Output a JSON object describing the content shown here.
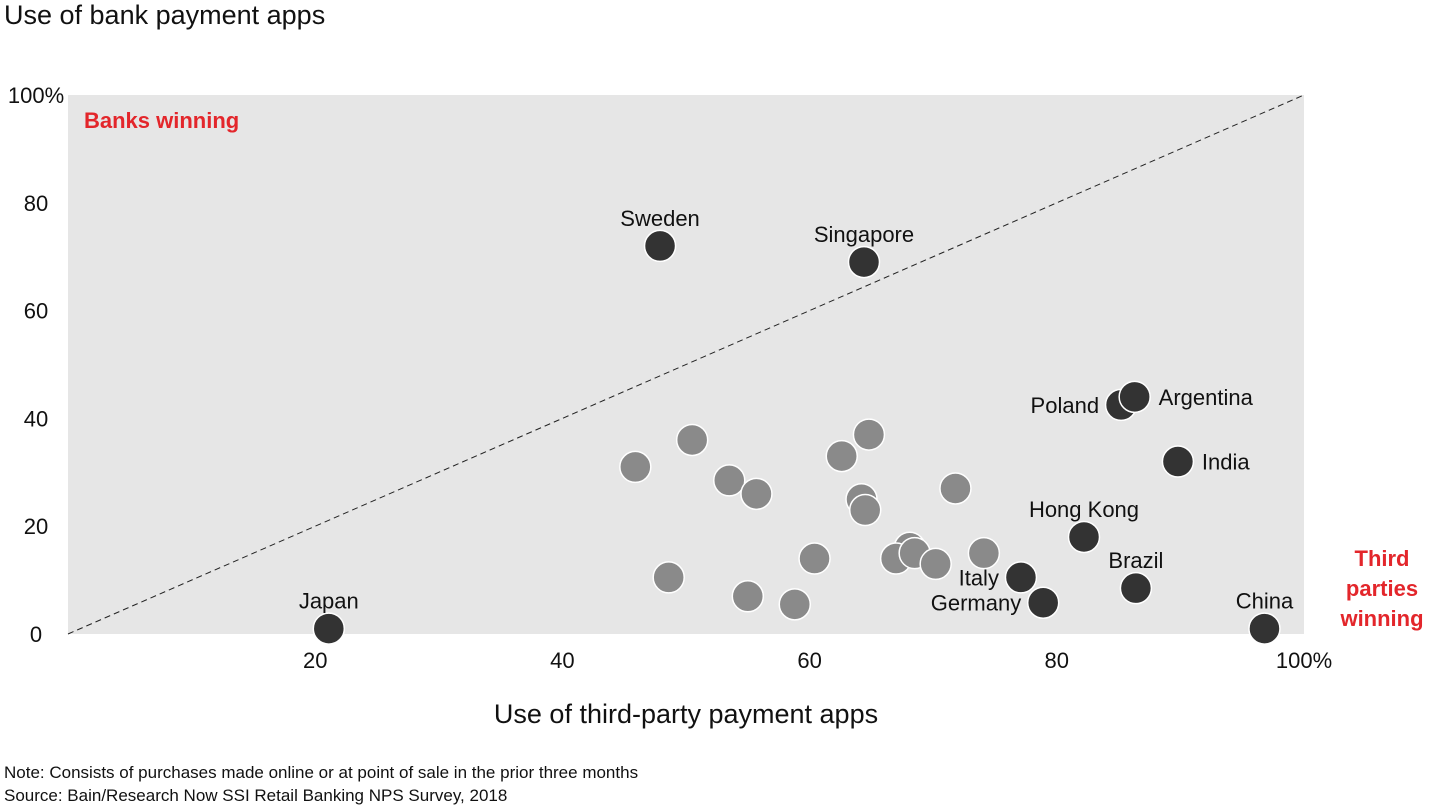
{
  "chart_data": {
    "type": "scatter",
    "title": "Use of bank payment apps",
    "ylabel": "Use of bank payment apps",
    "xlabel": "Use of third-party payment apps",
    "xlim": [
      0,
      100
    ],
    "ylim": [
      0,
      100
    ],
    "x_ticks": [
      {
        "value": 20,
        "label": "20"
      },
      {
        "value": 40,
        "label": "40"
      },
      {
        "value": 60,
        "label": "60"
      },
      {
        "value": 80,
        "label": "80"
      },
      {
        "value": 100,
        "label": "100%"
      }
    ],
    "y_ticks": [
      {
        "value": 0,
        "label": "0"
      },
      {
        "value": 20,
        "label": "20"
      },
      {
        "value": 40,
        "label": "40"
      },
      {
        "value": 60,
        "label": "60"
      },
      {
        "value": 80,
        "label": "80"
      },
      {
        "value": 100,
        "label": "100%"
      }
    ],
    "diagonal": true,
    "zones": {
      "upper": {
        "label": "Banks winning"
      },
      "lower": {
        "label_lines": [
          "Third",
          "parties",
          "winning"
        ]
      }
    },
    "highlighted_points": [
      {
        "label": "Sweden",
        "x": 47.9,
        "y": 72.0,
        "label_pos": "above"
      },
      {
        "label": "Singapore",
        "x": 64.4,
        "y": 69.0,
        "label_pos": "above"
      },
      {
        "label": "Poland",
        "x": 85.2,
        "y": 42.5,
        "label_pos": "left"
      },
      {
        "label": "Argentina",
        "x": 86.3,
        "y": 44.0,
        "label_pos": "right"
      },
      {
        "label": "India",
        "x": 89.8,
        "y": 32.0,
        "label_pos": "right"
      },
      {
        "label": "Hong Kong",
        "x": 82.2,
        "y": 18.0,
        "label_pos": "above"
      },
      {
        "label": "Brazil",
        "x": 86.4,
        "y": 8.5,
        "label_pos": "above"
      },
      {
        "label": "Italy",
        "x": 77.1,
        "y": 10.5,
        "label_pos": "left"
      },
      {
        "label": "Germany",
        "x": 78.9,
        "y": 5.8,
        "label_pos": "left"
      },
      {
        "label": "Japan",
        "x": 21.1,
        "y": 1.0,
        "label_pos": "above"
      },
      {
        "label": "China",
        "x": 96.8,
        "y": 1.0,
        "label_pos": "above"
      }
    ],
    "other_points": [
      {
        "x": 45.9,
        "y": 31.0
      },
      {
        "x": 50.5,
        "y": 36.0
      },
      {
        "x": 53.5,
        "y": 28.5
      },
      {
        "x": 55.7,
        "y": 26.0
      },
      {
        "x": 62.6,
        "y": 33.0
      },
      {
        "x": 64.8,
        "y": 37.0
      },
      {
        "x": 64.2,
        "y": 25.0
      },
      {
        "x": 64.5,
        "y": 23.0
      },
      {
        "x": 71.8,
        "y": 27.0
      },
      {
        "x": 68.1,
        "y": 16.0
      },
      {
        "x": 67.0,
        "y": 14.0
      },
      {
        "x": 68.5,
        "y": 15.0
      },
      {
        "x": 70.2,
        "y": 13.0
      },
      {
        "x": 74.1,
        "y": 15.0
      },
      {
        "x": 60.4,
        "y": 14.0
      },
      {
        "x": 48.6,
        "y": 10.5
      },
      {
        "x": 55.0,
        "y": 7.0
      },
      {
        "x": 58.8,
        "y": 5.5
      }
    ],
    "colors": {
      "plot_bg": "#e6e6e6",
      "highlight": "#333333",
      "other": "#8a8a8a",
      "accent": "#e3262b"
    }
  },
  "notes": [
    "Note: Consists of purchases made online or at point of sale in the prior three months",
    "Source: Bain/Research Now SSI Retail Banking NPS Survey, 2018"
  ]
}
